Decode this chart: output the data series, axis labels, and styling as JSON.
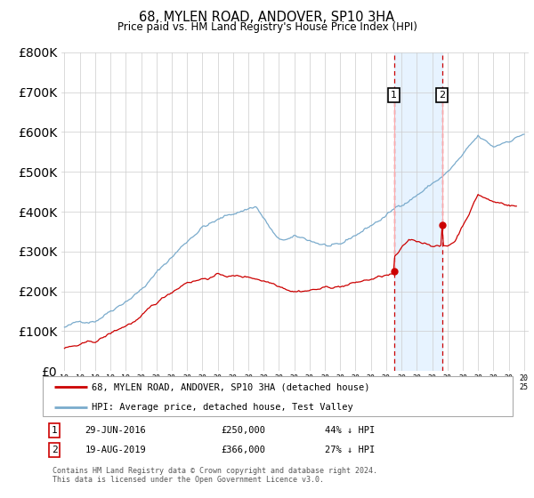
{
  "title": "68, MYLEN ROAD, ANDOVER, SP10 3HA",
  "subtitle": "Price paid vs. HM Land Registry's House Price Index (HPI)",
  "footer": "Contains HM Land Registry data © Crown copyright and database right 2024.\nThis data is licensed under the Open Government Licence v3.0.",
  "legend_line1": "68, MYLEN ROAD, ANDOVER, SP10 3HA (detached house)",
  "legend_line2": "HPI: Average price, detached house, Test Valley",
  "annotation1_label": "1",
  "annotation1_date": "29-JUN-2016",
  "annotation1_price": "£250,000",
  "annotation1_pct": "44% ↓ HPI",
  "annotation1_year": 2016.5,
  "annotation1_value": 250000,
  "annotation2_label": "2",
  "annotation2_date": "19-AUG-2019",
  "annotation2_price": "£366,000",
  "annotation2_pct": "27% ↓ HPI",
  "annotation2_year": 2019.65,
  "annotation2_value": 366000,
  "red_color": "#cc0000",
  "blue_color": "#7aabcc",
  "shade_color": "#ddeeff",
  "grid_color": "#cccccc",
  "marker_border_color": "#cc0000",
  "marker_label_color": "#000000",
  "ylim": [
    0,
    800000
  ],
  "yticks": [
    0,
    100000,
    200000,
    300000,
    400000,
    500000,
    600000,
    700000,
    800000
  ],
  "xlim_left": 1994.8,
  "xlim_right": 2025.3
}
